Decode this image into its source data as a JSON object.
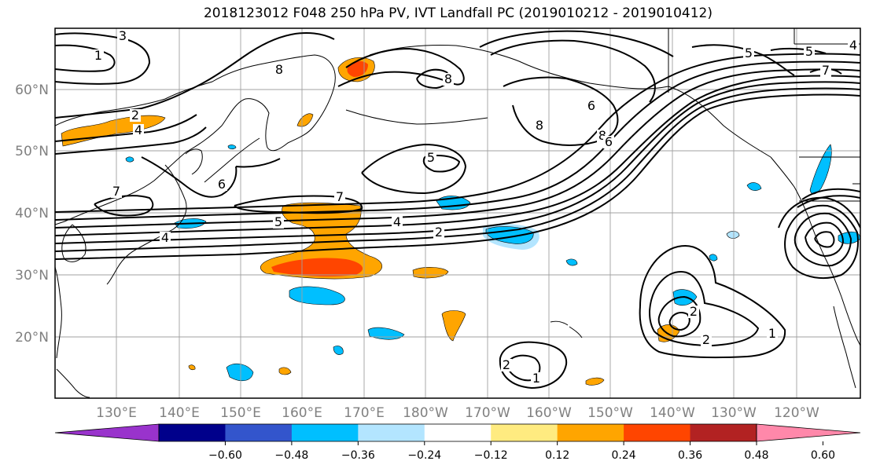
{
  "title": "2018123012 F048 250 hPa PV, IVT Landfall PC (2019010212 - 2019010412)",
  "lat_labels": [
    "60°N",
    "50°N",
    "40°N",
    "30°N",
    "20°N"
  ],
  "lon_labels": [
    "130°E",
    "140°E",
    "150°E",
    "160°E",
    "170°E",
    "180°W",
    "170°W",
    "160°W",
    "150°W",
    "140°W",
    "130°W",
    "120°W"
  ],
  "contour_labels": [
    "1",
    "3",
    "4",
    "2",
    "4",
    "5",
    "8",
    "8",
    "5",
    "6",
    "5",
    "4",
    "7",
    "6",
    "7",
    "5",
    "4",
    "2",
    "8",
    "8",
    "6",
    "7",
    "2",
    "2",
    "1",
    "2",
    "1"
  ],
  "colorbar": {
    "ticks": [
      "−0.60",
      "−0.48",
      "−0.36",
      "−0.24",
      "−0.12",
      "0.12",
      "0.24",
      "0.36",
      "0.48",
      "0.60"
    ],
    "colors": [
      "#9933cc",
      "#00008b",
      "#3355cc",
      "#00bfff",
      "#b3e5ff",
      "#ffffff",
      "#ffeb80",
      "#ffa500",
      "#ff4500",
      "#b22222",
      "#ff88aa"
    ]
  },
  "colors": {
    "contour": "#000000",
    "grid": "#a0a0a0",
    "coast": "#000000",
    "pos_shading": "#ffa500",
    "strong_pos_shading": "#ff4500",
    "neg_shading": "#00bfff",
    "light_neg_shading": "#b3e5ff"
  }
}
